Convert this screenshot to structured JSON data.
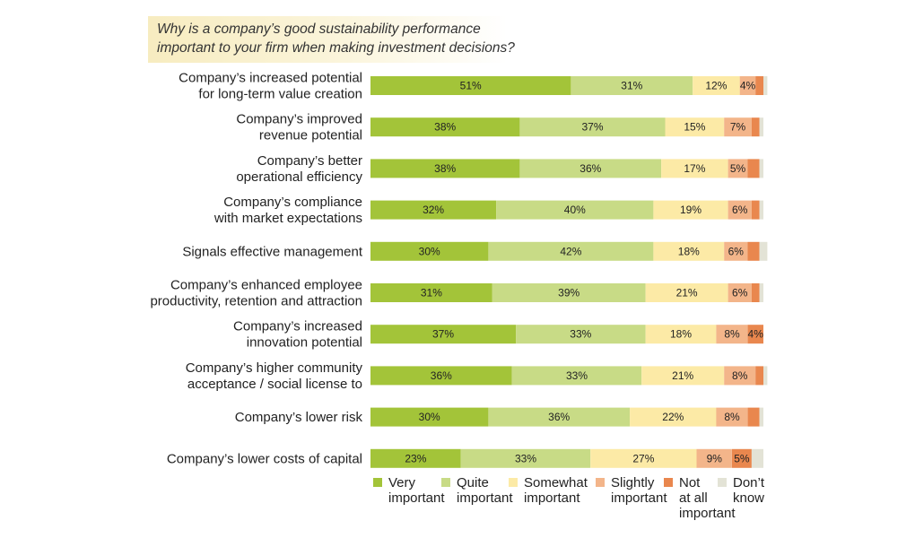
{
  "question": {
    "line1": "Why is a company’s good sustainability performance",
    "line2": "important to your firm when making investment decisions?"
  },
  "colors": {
    "very_important": "#a3c439",
    "quite_important": "#c8db86",
    "somewhat_important": "#fceaa6",
    "slightly_important": "#f3b58a",
    "not_at_all_important": "#e9874e",
    "dont_know": "#e3e3d6",
    "banner": "#f7ecc0"
  },
  "chart_data": {
    "type": "bar",
    "orientation": "horizontal",
    "stacked": true,
    "title": "Why is a company’s good sustainability performance important to your firm when making investment decisions?",
    "unit": "%",
    "categories": [
      [
        "Company’s increased potential",
        "for long-term value creation"
      ],
      [
        "Company’s improved",
        "revenue potential"
      ],
      [
        "Company’s better",
        "operational efficiency"
      ],
      [
        "Company’s compliance",
        "with market expectations"
      ],
      [
        "Signals effective management"
      ],
      [
        "Company’s enhanced employee",
        "productivity, retention and attraction"
      ],
      [
        "Company’s increased",
        "innovation potential"
      ],
      [
        "Company’s higher community",
        "acceptance / social license to"
      ],
      [
        "Company’s lower risk"
      ],
      [
        "Company’s lower costs of capital"
      ]
    ],
    "series": [
      {
        "name": "Very important",
        "legend_lines": [
          "Very",
          "important"
        ],
        "color": "#a3c439",
        "values": [
          51,
          38,
          38,
          32,
          30,
          31,
          37,
          36,
          30,
          23
        ],
        "labels": [
          "51%",
          "38%",
          "38%",
          "32%",
          "30%",
          "31%",
          "37%",
          "36%",
          "30%",
          "23%"
        ]
      },
      {
        "name": "Quite important",
        "legend_lines": [
          "Quite",
          "important"
        ],
        "color": "#c8db86",
        "values": [
          31,
          37,
          36,
          40,
          42,
          39,
          33,
          33,
          36,
          33
        ],
        "labels": [
          "31%",
          "37%",
          "36%",
          "40%",
          "42%",
          "39%",
          "33%",
          "33%",
          "36%",
          "33%"
        ]
      },
      {
        "name": "Somewhat important",
        "legend_lines": [
          "Somewhat",
          "important"
        ],
        "color": "#fceaa6",
        "values": [
          12,
          15,
          17,
          19,
          18,
          21,
          18,
          21,
          22,
          27
        ],
        "labels": [
          "12%",
          "15%",
          "17%",
          "19%",
          "18%",
          "21%",
          "18%",
          "21%",
          "22%",
          "27%"
        ]
      },
      {
        "name": "Slightly important",
        "legend_lines": [
          "Slightly",
          "important"
        ],
        "color": "#f3b58a",
        "values": [
          4,
          7,
          5,
          6,
          6,
          6,
          8,
          8,
          8,
          9
        ],
        "labels": [
          "4%",
          "7%",
          "5%",
          "6%",
          "6%",
          "6%",
          "8%",
          "8%",
          "8%",
          "9%"
        ]
      },
      {
        "name": "Not at all important",
        "legend_lines": [
          "Not",
          "at all",
          "important"
        ],
        "color": "#e9874e",
        "values": [
          2,
          2,
          3,
          2,
          3,
          2,
          4,
          2,
          3,
          5
        ],
        "labels": [
          "",
          "",
          "",
          "",
          "",
          "",
          "4%",
          "",
          "",
          "5%"
        ]
      },
      {
        "name": "Don’t know",
        "legend_lines": [
          "Don’t",
          "know"
        ],
        "color": "#e3e3d6",
        "values": [
          1,
          1,
          1,
          1,
          2,
          1,
          0,
          1,
          1,
          3
        ],
        "labels": [
          "",
          "",
          "",
          "",
          "",
          "",
          "",
          "",
          "",
          ""
        ]
      }
    ],
    "xlim": [
      0,
      100
    ],
    "grid": false,
    "legend_position": "bottom"
  }
}
